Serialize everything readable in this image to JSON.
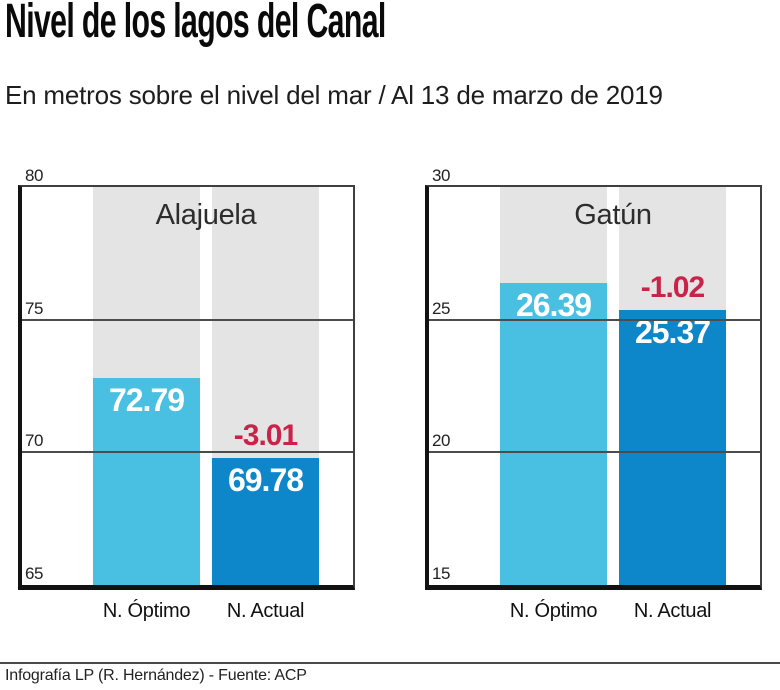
{
  "header": {
    "title": "Nivel de los lagos del Canal",
    "subtitle": "En metros sobre el nivel del mar / Al 13 de marzo de 2019"
  },
  "colors": {
    "optimo_blue": "#49c0e1",
    "actual_blue": "#0e86ca",
    "negative_red": "#c9234a",
    "column_gray": "#e5e4e5",
    "axis_black": "#121212"
  },
  "chart_data": [
    {
      "type": "bar",
      "title": "Alajuela",
      "categories": [
        "N. Óptimo",
        "N. Actual"
      ],
      "series": [
        {
          "name": "N. Óptimo",
          "value": 72.79,
          "label": "72.79",
          "color": "#49c0e1"
        },
        {
          "name": "N. Actual",
          "value": 69.78,
          "label": "69.78",
          "color": "#0e86ca"
        }
      ],
      "difference": {
        "value": -3.01,
        "label": "-3.01",
        "color": "#c9234a"
      },
      "ylim": [
        65,
        80
      ],
      "yticks": [
        80,
        75,
        70,
        65
      ],
      "xlabel": "",
      "ylabel": "",
      "grid": true,
      "legend_position": "none"
    },
    {
      "type": "bar",
      "title": "Gatún",
      "categories": [
        "N. Óptimo",
        "N. Actual"
      ],
      "series": [
        {
          "name": "N. Óptimo",
          "value": 26.39,
          "label": "26.39",
          "color": "#49c0e1"
        },
        {
          "name": "N. Actual",
          "value": 25.37,
          "label": "25.37",
          "color": "#0e86ca"
        }
      ],
      "difference": {
        "value": -1.02,
        "label": "-1.02",
        "color": "#c9234a"
      },
      "ylim": [
        15,
        30
      ],
      "yticks": [
        30,
        25,
        20,
        15
      ],
      "xlabel": "",
      "ylabel": "",
      "grid": true,
      "legend_position": "none"
    }
  ],
  "footer": {
    "credit": "Infografía LP (R. Hernández) - Fuente: ACP"
  }
}
